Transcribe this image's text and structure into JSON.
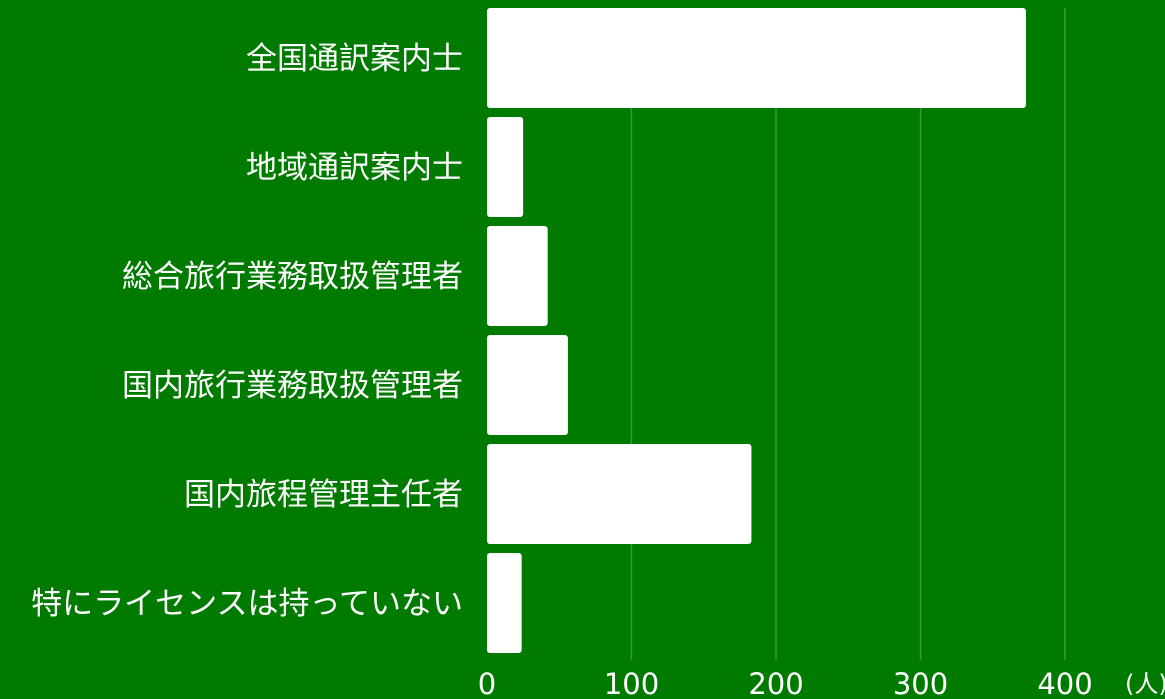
{
  "colors": {
    "background": "#007b00",
    "bar": "#ffffff",
    "text": "#ffffff",
    "grid": "#3a9a3a"
  },
  "chart_data": {
    "type": "bar",
    "orientation": "horizontal",
    "categories": [
      "全国通訳案内士",
      "地域通訳案内士",
      "総合旅行業務取扱管理者",
      "国内旅行業務取扱管理者",
      "国内旅程管理主任者",
      "特にライセンスは持っていない"
    ],
    "values": [
      373,
      25,
      42,
      56,
      183,
      24
    ],
    "xlim": [
      0,
      400
    ],
    "xticks": [
      0,
      100,
      200,
      300,
      400
    ],
    "xtick_labels": [
      "0",
      "100",
      "200",
      "300",
      "400"
    ],
    "x_unit": "(人)",
    "grid": "vertical"
  }
}
